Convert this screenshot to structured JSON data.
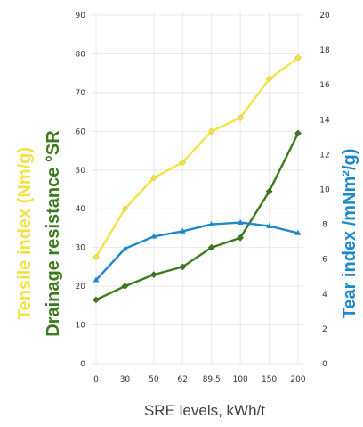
{
  "chart_data": {
    "type": "line",
    "categories": [
      "0",
      "30",
      "50",
      "62",
      "89,5",
      "100",
      "150",
      "200"
    ],
    "xlabel": "SRE levels, kWh/t",
    "ylabel_left_outer": "Tensile index (Nm/g)",
    "ylabel_left_inner": "Drainage resistance °SR",
    "ylabel_right": "Tear index /mNm²/g)",
    "y_left_ticks": [
      "0",
      "10",
      "20",
      "30",
      "40",
      "50",
      "60",
      "70",
      "80",
      "90"
    ],
    "y_right_ticks": [
      "0",
      "2",
      "4",
      "6",
      "8",
      "10",
      "12",
      "14",
      "16",
      "18",
      "20"
    ],
    "ylim_left": [
      0,
      90
    ],
    "ylim_right": [
      0,
      20
    ],
    "grid": true,
    "series": [
      {
        "key": "tensile",
        "axis": "left",
        "color": "#f2e24a",
        "values": [
          27.5,
          40,
          48,
          52,
          60,
          63.5,
          73.5,
          79
        ]
      },
      {
        "key": "drainage",
        "axis": "left",
        "color": "#3d7a1e",
        "values": [
          16.5,
          20,
          23,
          25,
          30,
          32.5,
          44.5,
          59.5
        ]
      },
      {
        "key": "tear",
        "axis": "right",
        "color": "#1f88c9",
        "values": [
          4.8,
          6.6,
          7.3,
          7.6,
          8.0,
          8.1,
          7.9,
          7.5
        ]
      }
    ]
  },
  "colors": {
    "tensile": "#f2e24a",
    "drainage": "#3d7a1e",
    "tear": "#1f88c9"
  }
}
